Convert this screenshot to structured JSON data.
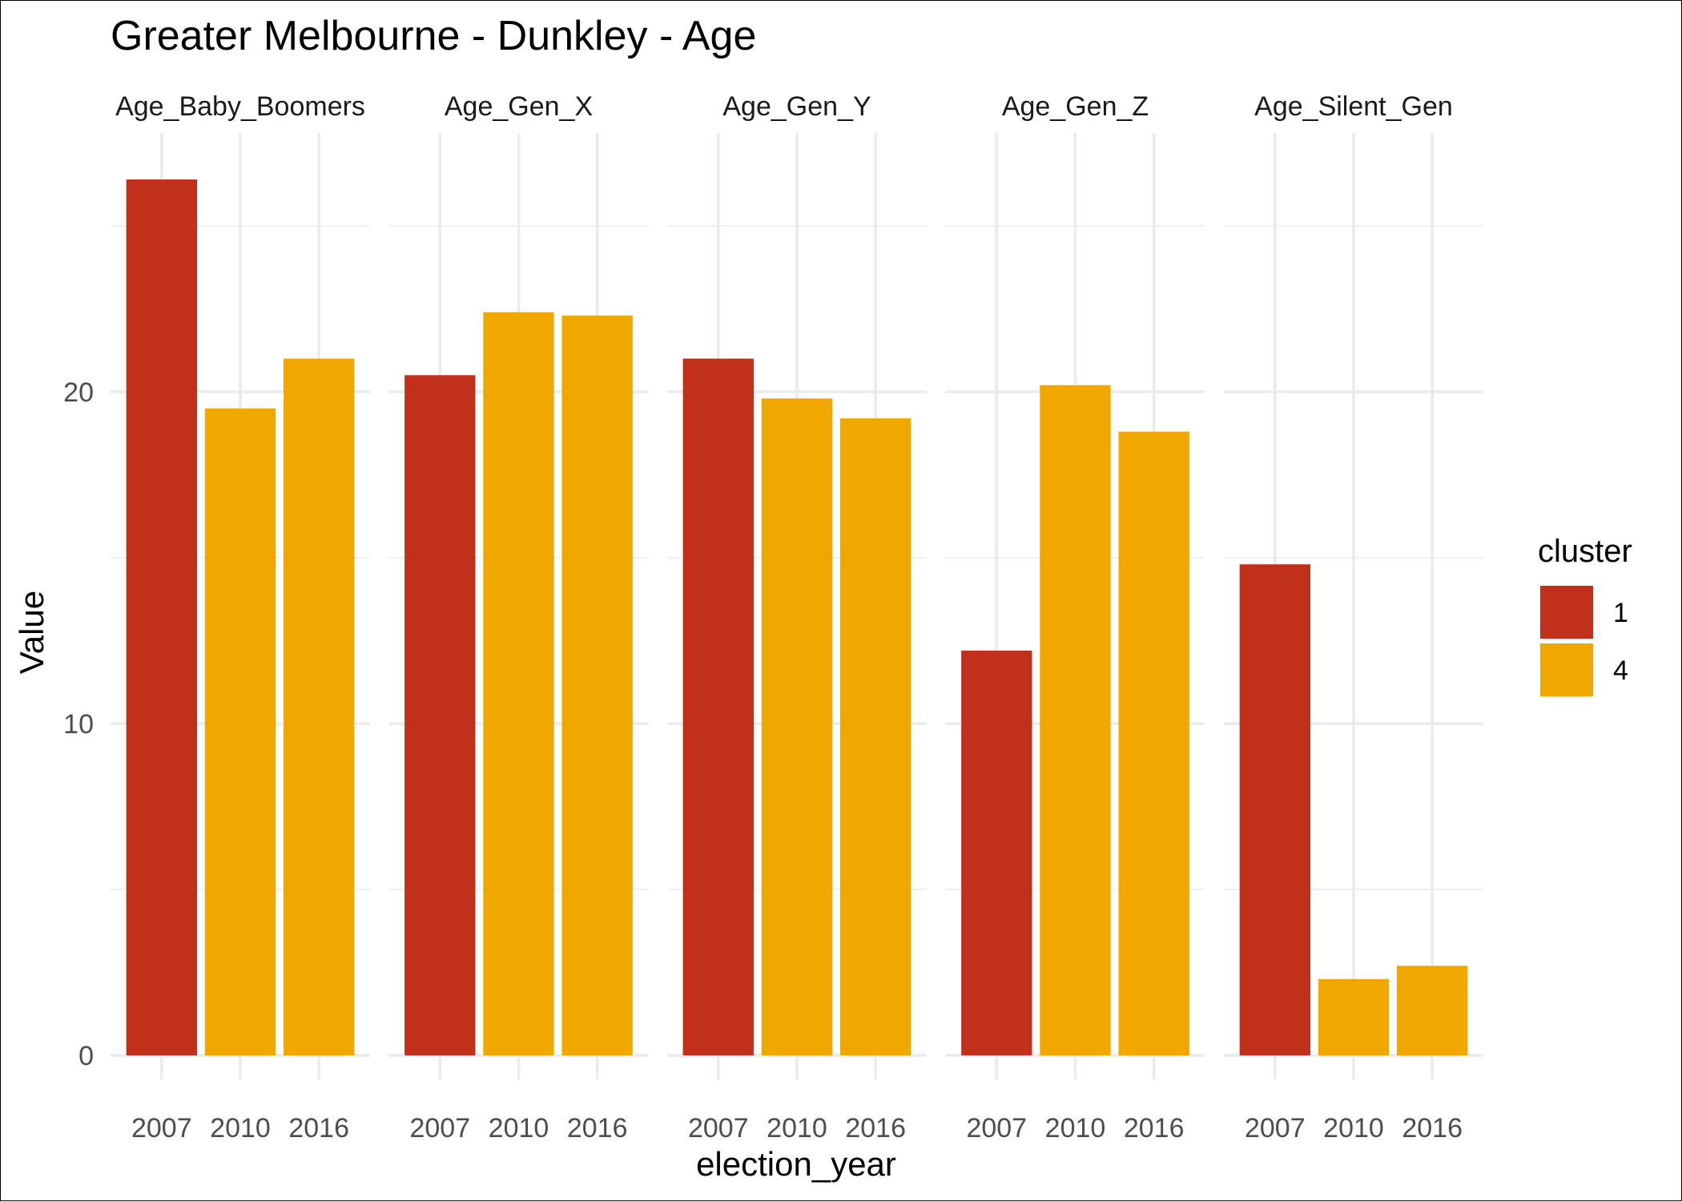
{
  "chart_data": {
    "type": "bar",
    "title": "Greater Melbourne - Dunkley - Age",
    "xlabel": "election_year",
    "ylabel": "Value",
    "ylim": [
      0,
      27.8
    ],
    "y_ticks": [
      0,
      10,
      20
    ],
    "grid": true,
    "legend": {
      "title": "cluster",
      "placement": "right",
      "entries": [
        {
          "label": "1",
          "color": "#C0301A"
        },
        {
          "label": "4",
          "color": "#F0A800"
        }
      ]
    },
    "facets": [
      {
        "name": "Age_Baby_Boomers",
        "categories": [
          "2007",
          "2010",
          "2016"
        ],
        "values": [
          26.4,
          19.5,
          21.0
        ],
        "clusters": [
          "1",
          "4",
          "4"
        ]
      },
      {
        "name": "Age_Gen_X",
        "categories": [
          "2007",
          "2010",
          "2016"
        ],
        "values": [
          20.5,
          22.4,
          22.3
        ],
        "clusters": [
          "1",
          "4",
          "4"
        ]
      },
      {
        "name": "Age_Gen_Y",
        "categories": [
          "2007",
          "2010",
          "2016"
        ],
        "values": [
          21.0,
          19.8,
          19.2
        ],
        "clusters": [
          "1",
          "4",
          "4"
        ]
      },
      {
        "name": "Age_Gen_Z",
        "categories": [
          "2007",
          "2010",
          "2016"
        ],
        "values": [
          12.2,
          20.2,
          18.8
        ],
        "clusters": [
          "1",
          "4",
          "4"
        ]
      },
      {
        "name": "Age_Silent_Gen",
        "categories": [
          "2007",
          "2010",
          "2016"
        ],
        "values": [
          14.8,
          2.3,
          2.7
        ],
        "clusters": [
          "1",
          "4",
          "4"
        ]
      }
    ]
  }
}
